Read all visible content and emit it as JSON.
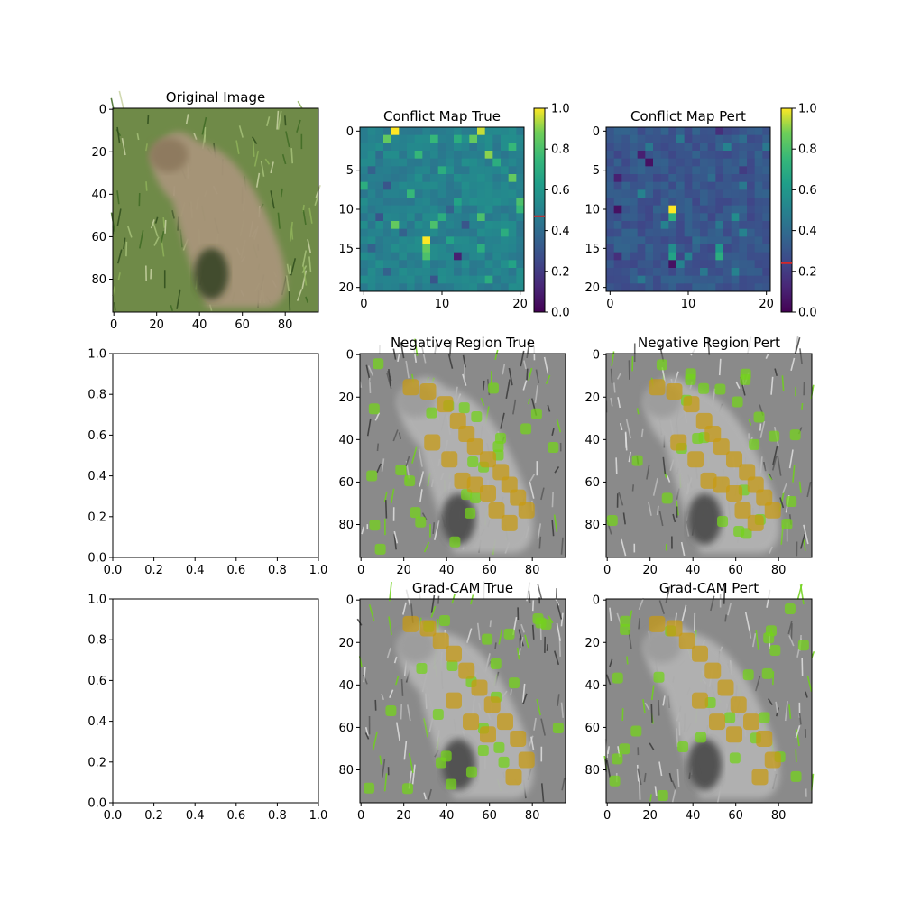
{
  "figure": {
    "colormap": "viridis",
    "panels": [
      {
        "id": "original",
        "title": "Original Image",
        "kind": "photo",
        "tint": "none",
        "xticks": [
          "0",
          "20",
          "40",
          "60",
          "80"
        ],
        "yticks": [
          "0",
          "20",
          "40",
          "60",
          "80"
        ],
        "extent": [
          0,
          96
        ]
      },
      {
        "id": "conflict-true",
        "title": "Conflict Map True",
        "kind": "heatmap",
        "xticks": [
          "0",
          "10",
          "20"
        ],
        "yticks": [
          "0",
          "5",
          "10",
          "15",
          "20"
        ]
      },
      {
        "id": "conflict-pert",
        "title": "Conflict Map Pert",
        "kind": "heatmap",
        "xticks": [
          "0",
          "10",
          "20"
        ],
        "yticks": [
          "0",
          "5",
          "10",
          "15",
          "20"
        ]
      },
      {
        "id": "empty-1",
        "title": "",
        "kind": "empty",
        "xticks": [
          "0.0",
          "0.2",
          "0.4",
          "0.6",
          "0.8",
          "1.0"
        ],
        "yticks": [
          "0.0",
          "0.2",
          "0.4",
          "0.6",
          "0.8",
          "1.0"
        ]
      },
      {
        "id": "neg-true",
        "title": "Negative Region True",
        "kind": "photo",
        "tint": "neg",
        "xticks": [
          "0",
          "20",
          "40",
          "60",
          "80"
        ],
        "yticks": [
          "0",
          "20",
          "40",
          "60",
          "80"
        ],
        "extent": [
          0,
          96
        ]
      },
      {
        "id": "neg-pert",
        "title": "Negative Region Pert",
        "kind": "photo",
        "tint": "neg",
        "xticks": [
          "0",
          "20",
          "40",
          "60",
          "80"
        ],
        "yticks": [
          "0",
          "20",
          "40",
          "60",
          "80"
        ],
        "extent": [
          0,
          96
        ]
      },
      {
        "id": "empty-2",
        "title": "",
        "kind": "empty",
        "xticks": [
          "0.0",
          "0.2",
          "0.4",
          "0.6",
          "0.8",
          "1.0"
        ],
        "yticks": [
          "0.0",
          "0.2",
          "0.4",
          "0.6",
          "0.8",
          "1.0"
        ]
      },
      {
        "id": "gradcam-true",
        "title": "Grad-CAM True",
        "kind": "photo",
        "tint": "cam",
        "xticks": [
          "0",
          "20",
          "40",
          "60",
          "80"
        ],
        "yticks": [
          "0",
          "20",
          "40",
          "60",
          "80"
        ],
        "extent": [
          0,
          96
        ]
      },
      {
        "id": "gradcam-pert",
        "title": "Grad-CAM Pert",
        "kind": "photo",
        "tint": "cam",
        "xticks": [
          "0",
          "20",
          "40",
          "60",
          "80"
        ],
        "yticks": [
          "0",
          "20",
          "40",
          "60",
          "80"
        ],
        "extent": [
          0,
          96
        ]
      }
    ],
    "colorbars": [
      {
        "for": "conflict-true",
        "ticks": [
          "0.0",
          "0.2",
          "0.4",
          "0.6",
          "0.8",
          "1.0"
        ],
        "marker_value": 0.47,
        "marker_color": "#d62728"
      },
      {
        "for": "conflict-pert",
        "ticks": [
          "0.0",
          "0.2",
          "0.4",
          "0.6",
          "0.8",
          "1.0"
        ],
        "marker_value": 0.24,
        "marker_color": "#d62728"
      }
    ]
  },
  "chart_data": [
    {
      "type": "image",
      "title": "Original Image",
      "xlim": [
        0,
        96
      ],
      "ylim": [
        96,
        0
      ]
    },
    {
      "type": "heatmap",
      "title": "Conflict Map True",
      "grid_size": [
        21,
        21
      ],
      "xlim": [
        0,
        20
      ],
      "ylim": [
        20,
        0
      ],
      "colorbar_range": [
        0,
        1
      ],
      "baseline_value": 0.5,
      "cells": [
        [
          0,
          4,
          1.0
        ],
        [
          0,
          15,
          0.95
        ],
        [
          1,
          3,
          0.85
        ],
        [
          1,
          9,
          0.75
        ],
        [
          1,
          12,
          0.7
        ],
        [
          1,
          14,
          0.85
        ],
        [
          2,
          19,
          0.75
        ],
        [
          3,
          2,
          0.4
        ],
        [
          3,
          7,
          0.75
        ],
        [
          3,
          16,
          0.9
        ],
        [
          4,
          17,
          0.7
        ],
        [
          5,
          1,
          0.35
        ],
        [
          5,
          10,
          0.7
        ],
        [
          6,
          19,
          0.85
        ],
        [
          7,
          0,
          0.7
        ],
        [
          7,
          3,
          0.3
        ],
        [
          8,
          6,
          0.75
        ],
        [
          9,
          12,
          0.65
        ],
        [
          9,
          20,
          0.8
        ],
        [
          10,
          11,
          0.35
        ],
        [
          10,
          20,
          0.75
        ],
        [
          11,
          2,
          0.3
        ],
        [
          11,
          10,
          0.7
        ],
        [
          11,
          15,
          0.8
        ],
        [
          12,
          4,
          0.85
        ],
        [
          12,
          9,
          0.8
        ],
        [
          12,
          13,
          0.3
        ],
        [
          13,
          5,
          0.35
        ],
        [
          13,
          18,
          0.7
        ],
        [
          14,
          8,
          1.0
        ],
        [
          14,
          11,
          0.65
        ],
        [
          15,
          1,
          0.35
        ],
        [
          15,
          8,
          0.85
        ],
        [
          15,
          15,
          0.7
        ],
        [
          16,
          8,
          0.8
        ],
        [
          16,
          12,
          0.1
        ],
        [
          17,
          19,
          0.65
        ],
        [
          18,
          3,
          0.35
        ],
        [
          19,
          9,
          0.3
        ],
        [
          19,
          16,
          0.7
        ]
      ]
    },
    {
      "type": "heatmap",
      "title": "Conflict Map Pert",
      "grid_size": [
        21,
        21
      ],
      "xlim": [
        0,
        20
      ],
      "ylim": [
        20,
        0
      ],
      "colorbar_range": [
        0,
        1
      ],
      "baseline_value": 0.3,
      "cells": [
        [
          0,
          14,
          0.15
        ],
        [
          1,
          9,
          0.45
        ],
        [
          1,
          17,
          0.4
        ],
        [
          2,
          5,
          0.45
        ],
        [
          2,
          15,
          0.5
        ],
        [
          2,
          20,
          0.45
        ],
        [
          3,
          4,
          0.1
        ],
        [
          4,
          5,
          0.05
        ],
        [
          4,
          2,
          0.25
        ],
        [
          5,
          17,
          0.2
        ],
        [
          6,
          1,
          0.1
        ],
        [
          6,
          13,
          0.4
        ],
        [
          7,
          17,
          0.45
        ],
        [
          8,
          4,
          0.5
        ],
        [
          9,
          7,
          0.35
        ],
        [
          10,
          1,
          0.05
        ],
        [
          10,
          8,
          1.0
        ],
        [
          11,
          8,
          0.7
        ],
        [
          11,
          16,
          0.55
        ],
        [
          12,
          7,
          0.5
        ],
        [
          12,
          14,
          0.45
        ],
        [
          13,
          17,
          0.5
        ],
        [
          14,
          11,
          0.4
        ],
        [
          15,
          8,
          0.55
        ],
        [
          15,
          14,
          0.6
        ],
        [
          16,
          1,
          0.15
        ],
        [
          16,
          8,
          0.65
        ],
        [
          16,
          10,
          0.5
        ],
        [
          16,
          14,
          0.7
        ],
        [
          17,
          8,
          0.05
        ],
        [
          17,
          9,
          0.5
        ],
        [
          18,
          12,
          0.45
        ],
        [
          18,
          16,
          0.5
        ],
        [
          19,
          4,
          0.45
        ]
      ]
    },
    {
      "type": "empty",
      "xlim": [
        0,
        1
      ],
      "ylim": [
        0,
        1
      ]
    },
    {
      "type": "image",
      "title": "Negative Region True",
      "xlim": [
        0,
        96
      ],
      "ylim": [
        96,
        0
      ]
    },
    {
      "type": "image",
      "title": "Negative Region Pert",
      "xlim": [
        0,
        96
      ],
      "ylim": [
        96,
        0
      ]
    },
    {
      "type": "empty",
      "xlim": [
        0,
        1
      ],
      "ylim": [
        0,
        1
      ]
    },
    {
      "type": "image",
      "title": "Grad-CAM True",
      "xlim": [
        0,
        96
      ],
      "ylim": [
        96,
        0
      ]
    },
    {
      "type": "image",
      "title": "Grad-CAM Pert",
      "xlim": [
        0,
        96
      ],
      "ylim": [
        96,
        0
      ]
    }
  ]
}
